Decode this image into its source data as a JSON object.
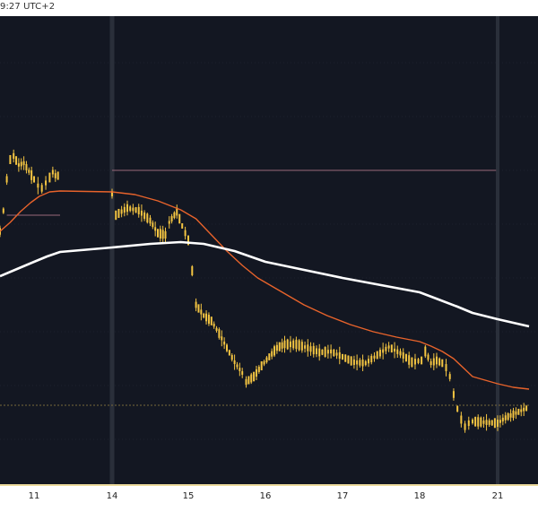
{
  "header": {
    "timestamp_text": "9:27 UTC+2"
  },
  "colors": {
    "background": "#131722",
    "candle": "#f4c542",
    "ema_fast": "#e8632b",
    "ema_slow": "#ffffff",
    "level_line": "#9a6a7a",
    "grid": "#2a2e39",
    "session_separator": "#3a3f4b"
  },
  "chart_data": {
    "type": "line",
    "title": "",
    "xlabel": "",
    "ylabel": "",
    "x_ticks": [
      {
        "label": "11",
        "day": 11
      },
      {
        "label": "14",
        "day": 14
      },
      {
        "label": "15",
        "day": 15
      },
      {
        "label": "16",
        "day": 16
      },
      {
        "label": "17",
        "day": 17
      },
      {
        "label": "18",
        "day": 18
      },
      {
        "label": "21",
        "day": 21
      }
    ],
    "grid": true,
    "legend": "none",
    "series": [
      {
        "type": "candlestick-approx",
        "color": "#f4c542",
        "points": [
          [
            10.0,
            258
          ],
          [
            10.1,
            235
          ],
          [
            10.2,
            200
          ],
          [
            10.3,
            178
          ],
          [
            10.4,
            174
          ],
          [
            10.55,
            184
          ],
          [
            10.7,
            182
          ],
          [
            10.85,
            191
          ],
          [
            11.0,
            200
          ],
          [
            11.15,
            207
          ],
          [
            11.3,
            210
          ],
          [
            11.45,
            204
          ],
          [
            11.6,
            198
          ],
          [
            11.72,
            192
          ],
          [
            11.82,
            196
          ],
          [
            11.92,
            196
          ],
          [
            12.0,
            198
          ],
          [
            14.0,
            216
          ],
          [
            14.05,
            240
          ],
          [
            14.2,
            232
          ],
          [
            14.35,
            235
          ],
          [
            14.5,
            246
          ],
          [
            14.6,
            260
          ],
          [
            14.7,
            262
          ],
          [
            14.75,
            248
          ],
          [
            14.85,
            236
          ],
          [
            14.92,
            252
          ],
          [
            15.0,
            268
          ],
          [
            15.05,
            302
          ],
          [
            15.1,
            340
          ],
          [
            15.2,
            352
          ],
          [
            15.3,
            358
          ],
          [
            15.4,
            372
          ],
          [
            15.5,
            388
          ],
          [
            15.6,
            404
          ],
          [
            15.7,
            416
          ],
          [
            15.75,
            426
          ],
          [
            15.85,
            420
          ],
          [
            15.95,
            408
          ],
          [
            16.05,
            398
          ],
          [
            16.15,
            388
          ],
          [
            16.25,
            384
          ],
          [
            16.4,
            384
          ],
          [
            16.55,
            388
          ],
          [
            16.7,
            393
          ],
          [
            16.85,
            392
          ],
          [
            17.0,
            398
          ],
          [
            17.15,
            404
          ],
          [
            17.3,
            405
          ],
          [
            17.45,
            396
          ],
          [
            17.6,
            387
          ],
          [
            17.75,
            394
          ],
          [
            17.9,
            404
          ],
          [
            18.05,
            402
          ],
          [
            18.15,
            392
          ],
          [
            18.3,
            405
          ],
          [
            18.45,
            402
          ],
          [
            18.6,
            405
          ],
          [
            18.7,
            410
          ],
          [
            18.8,
            420
          ],
          [
            18.9,
            440
          ],
          [
            19.0,
            456
          ],
          [
            19.1,
            468
          ],
          [
            19.2,
            476
          ],
          [
            19.3,
            472
          ],
          [
            19.4,
            470
          ],
          [
            21.0,
            472
          ],
          [
            21.1,
            466
          ],
          [
            21.2,
            462
          ],
          [
            21.3,
            458
          ],
          [
            21.4,
            454
          ]
        ]
      },
      {
        "type": "ema-fast",
        "color": "#e8632b",
        "points": [
          [
            10.0,
            258
          ],
          [
            10.3,
            248
          ],
          [
            10.6,
            236
          ],
          [
            10.9,
            226
          ],
          [
            11.2,
            219
          ],
          [
            11.6,
            214
          ],
          [
            12.0,
            213
          ],
          [
            14.0,
            214
          ],
          [
            14.3,
            217
          ],
          [
            14.6,
            224
          ],
          [
            14.9,
            234
          ],
          [
            15.1,
            244
          ],
          [
            15.3,
            262
          ],
          [
            15.5,
            280
          ],
          [
            15.7,
            296
          ],
          [
            15.9,
            310
          ],
          [
            16.2,
            325
          ],
          [
            16.5,
            340
          ],
          [
            16.8,
            352
          ],
          [
            17.1,
            362
          ],
          [
            17.4,
            370
          ],
          [
            17.7,
            376
          ],
          [
            18.0,
            381
          ],
          [
            18.3,
            386
          ],
          [
            18.6,
            392
          ],
          [
            18.9,
            400
          ],
          [
            19.2,
            412
          ],
          [
            19.4,
            420
          ],
          [
            21.0,
            428
          ],
          [
            21.2,
            432
          ],
          [
            21.4,
            434
          ]
        ]
      },
      {
        "type": "ema-slow",
        "color": "#ffffff",
        "points": [
          [
            10.0,
            308
          ],
          [
            10.5,
            300
          ],
          [
            11.0,
            292
          ],
          [
            11.5,
            286
          ],
          [
            12.0,
            281
          ],
          [
            14.0,
            276
          ],
          [
            14.5,
            272
          ],
          [
            14.9,
            270
          ],
          [
            15.2,
            272
          ],
          [
            15.6,
            280
          ],
          [
            16.0,
            292
          ],
          [
            16.5,
            301
          ],
          [
            17.0,
            310
          ],
          [
            17.5,
            318
          ],
          [
            18.0,
            326
          ],
          [
            18.5,
            334
          ],
          [
            19.0,
            342
          ],
          [
            19.4,
            349
          ],
          [
            21.0,
            356
          ],
          [
            21.2,
            360
          ],
          [
            21.4,
            364
          ]
        ]
      }
    ],
    "horizontal_levels": [
      {
        "from_day": 14.0,
        "to_day": 20.9,
        "value": 190,
        "color": "#9a6a7a"
      },
      {
        "from_day": 10.2,
        "to_day": 12.0,
        "value": 240,
        "color": "#9a6a7a"
      },
      {
        "from_day": 10.0,
        "to_day": 21.4,
        "value": 452,
        "color": "#7a6a3a",
        "dashed": true
      }
    ]
  }
}
